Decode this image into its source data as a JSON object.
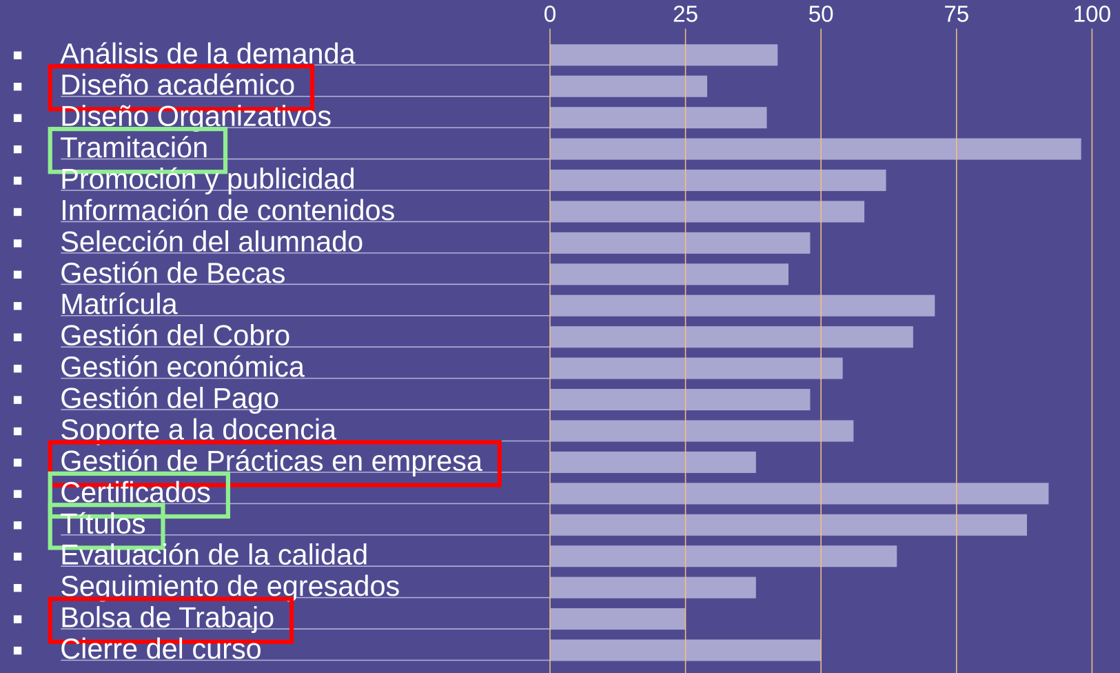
{
  "chart_data": {
    "type": "bar",
    "orientation": "horizontal",
    "categories": [
      "Análisis de la demanda",
      "Diseño académico",
      "Diseño Organizativos",
      "Tramitación",
      "Promoción y publicidad",
      "Información de contenidos",
      "Selección del alumnado",
      "Gestión de Becas",
      "Matrícula",
      "Gestión del Cobro",
      "Gestión económica",
      "Gestión del Pago",
      "Soporte a la docencia",
      "Gestión de Prácticas en empresa",
      "Certificados",
      "Títulos",
      "Evaluación de la calidad",
      "Seguimiento de egresados",
      "Bolsa de Trabajo",
      "Cierre del curso"
    ],
    "values": [
      42,
      29,
      40,
      98,
      62,
      58,
      48,
      44,
      71,
      67,
      54,
      48,
      56,
      38,
      92,
      88,
      64,
      38,
      25,
      50
    ],
    "color": "#a9a6d0",
    "box_colors": [
      null,
      "#ff0000",
      null,
      "#90ee90",
      null,
      null,
      null,
      null,
      null,
      null,
      null,
      null,
      null,
      "#ff0000",
      "#90ee90",
      "#90ee90",
      null,
      null,
      "#ff0000",
      null
    ],
    "xlim": [
      0,
      100
    ],
    "xticks": [
      0,
      25,
      50,
      75,
      100
    ],
    "grid": true,
    "grid_color": "#f0c080"
  }
}
